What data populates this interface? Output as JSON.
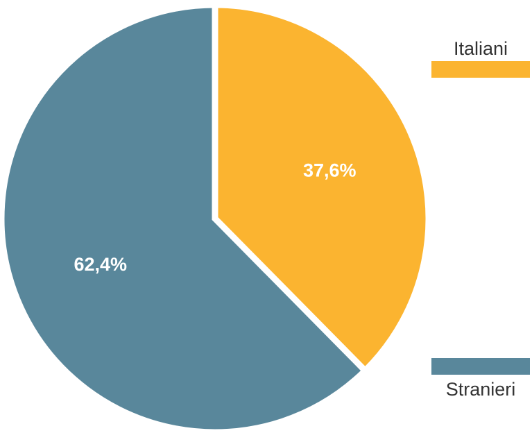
{
  "chart_data": {
    "type": "pie",
    "slices": [
      {
        "label": "Italiani",
        "value": 37.6,
        "display": "37,6%",
        "color": "#fbb430"
      },
      {
        "label": "Stranieri",
        "value": 62.4,
        "display": "62,4%",
        "color": "#59879b"
      }
    ],
    "start_angle": "12 o'clock",
    "direction": "clockwise",
    "legend_position": "right"
  }
}
